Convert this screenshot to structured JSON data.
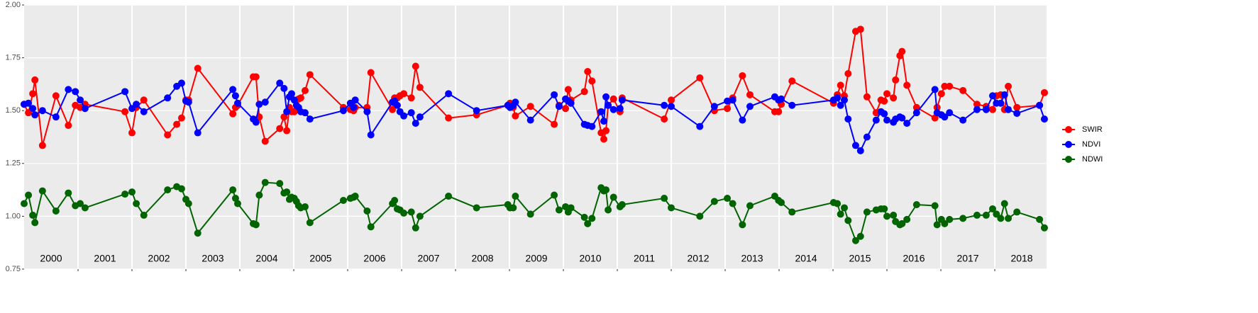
{
  "chart_data": {
    "type": "line",
    "x": [
      2000.0,
      2000.08,
      2000.16,
      2000.2,
      2000.34,
      2000.59,
      2000.82,
      2000.95,
      2001.04,
      2001.13,
      2001.87,
      2002.0,
      2002.08,
      2002.22,
      2002.66,
      2002.83,
      2002.92,
      2003.0,
      2003.05,
      2003.22,
      2003.87,
      2003.92,
      2003.96,
      2004.25,
      2004.3,
      2004.36,
      2004.47,
      2004.74,
      2004.82,
      2004.87,
      2004.92,
      2004.96,
      2005.01,
      2005.05,
      2005.09,
      2005.13,
      2005.21,
      2005.3,
      2005.92,
      2006.05,
      2006.11,
      2006.14,
      2006.36,
      2006.43,
      2006.83,
      2006.87,
      2006.92,
      2006.97,
      2007.04,
      2007.18,
      2007.26,
      2007.34,
      2007.87,
      2008.39,
      2008.97,
      2009.01,
      2009.07,
      2009.11,
      2009.39,
      2009.83,
      2009.92,
      2010.04,
      2010.09,
      2010.14,
      2010.39,
      2010.45,
      2010.53,
      2010.7,
      2010.75,
      2010.79,
      2010.83,
      2010.93,
      2011.05,
      2011.09,
      2011.87,
      2012.0,
      2012.53,
      2012.8,
      2013.04,
      2013.14,
      2013.32,
      2013.46,
      2013.92,
      2013.99,
      2014.04,
      2014.24,
      2015.01,
      2015.08,
      2015.14,
      2015.21,
      2015.28,
      2015.42,
      2015.51,
      2015.63,
      2015.8,
      2015.89,
      2015.95,
      2016.0,
      2016.12,
      2016.16,
      2016.24,
      2016.28,
      2016.37,
      2016.55,
      2016.89,
      2016.93,
      2017.01,
      2017.07,
      2017.16,
      2017.41,
      2017.67,
      2017.84,
      2017.96,
      2018.03,
      2018.11,
      2018.18,
      2018.25,
      2018.41,
      2018.83,
      2018.92
    ],
    "series": [
      {
        "name": "SWIR",
        "color": "#ff0000",
        "values": [
          1.53,
          1.49,
          1.58,
          1.645,
          1.335,
          1.57,
          1.43,
          1.525,
          1.515,
          1.53,
          1.495,
          1.395,
          1.515,
          1.55,
          1.385,
          1.435,
          1.465,
          1.55,
          1.55,
          1.7,
          1.485,
          1.515,
          1.525,
          1.66,
          1.66,
          1.47,
          1.355,
          1.415,
          1.47,
          1.405,
          1.515,
          1.495,
          1.495,
          1.505,
          1.555,
          1.56,
          1.595,
          1.67,
          1.515,
          1.505,
          1.5,
          1.515,
          1.515,
          1.68,
          1.505,
          1.56,
          1.56,
          1.57,
          1.58,
          1.56,
          1.71,
          1.61,
          1.465,
          1.48,
          1.525,
          1.535,
          1.515,
          1.475,
          1.52,
          1.435,
          1.525,
          1.51,
          1.6,
          1.55,
          1.59,
          1.685,
          1.64,
          1.395,
          1.365,
          1.405,
          1.525,
          1.555,
          1.495,
          1.56,
          1.46,
          1.55,
          1.655,
          1.5,
          1.51,
          1.56,
          1.665,
          1.575,
          1.495,
          1.495,
          1.53,
          1.64,
          1.535,
          1.575,
          1.62,
          1.57,
          1.675,
          1.875,
          1.885,
          1.565,
          1.49,
          1.55,
          1.545,
          1.58,
          1.56,
          1.645,
          1.76,
          1.78,
          1.62,
          1.515,
          1.465,
          1.515,
          1.58,
          1.615,
          1.615,
          1.595,
          1.53,
          1.52,
          1.505,
          1.57,
          1.575,
          1.505,
          1.615,
          1.515,
          1.525,
          1.585
        ]
      },
      {
        "name": "NDVI",
        "color": "#0000ff",
        "values": [
          1.53,
          1.535,
          1.51,
          1.48,
          1.5,
          1.47,
          1.6,
          1.59,
          1.55,
          1.51,
          1.59,
          1.51,
          1.53,
          1.495,
          1.56,
          1.615,
          1.63,
          1.545,
          1.54,
          1.395,
          1.6,
          1.57,
          1.535,
          1.46,
          1.445,
          1.53,
          1.54,
          1.63,
          1.605,
          1.495,
          1.565,
          1.58,
          1.55,
          1.525,
          1.515,
          1.495,
          1.49,
          1.46,
          1.5,
          1.535,
          1.515,
          1.55,
          1.495,
          1.385,
          1.54,
          1.545,
          1.525,
          1.495,
          1.475,
          1.49,
          1.44,
          1.47,
          1.58,
          1.5,
          1.525,
          1.515,
          1.525,
          1.54,
          1.455,
          1.575,
          1.52,
          1.555,
          1.545,
          1.535,
          1.435,
          1.43,
          1.425,
          1.495,
          1.45,
          1.565,
          1.525,
          1.505,
          1.51,
          1.55,
          1.525,
          1.52,
          1.425,
          1.52,
          1.545,
          1.55,
          1.455,
          1.52,
          1.565,
          1.55,
          1.555,
          1.525,
          1.55,
          1.56,
          1.525,
          1.55,
          1.46,
          1.335,
          1.31,
          1.375,
          1.455,
          1.495,
          1.485,
          1.455,
          1.445,
          1.46,
          1.47,
          1.465,
          1.44,
          1.49,
          1.6,
          1.49,
          1.48,
          1.47,
          1.49,
          1.455,
          1.505,
          1.505,
          1.57,
          1.535,
          1.535,
          1.575,
          1.505,
          1.487,
          1.525,
          1.46
        ]
      },
      {
        "name": "NDWI",
        "color": "#006400",
        "values": [
          1.06,
          1.1,
          1.005,
          0.97,
          1.12,
          1.025,
          1.11,
          1.05,
          1.06,
          1.04,
          1.105,
          1.115,
          1.06,
          1.005,
          1.125,
          1.14,
          1.13,
          1.08,
          1.06,
          0.92,
          1.125,
          1.085,
          1.06,
          0.965,
          0.96,
          1.1,
          1.16,
          1.155,
          1.11,
          1.115,
          1.08,
          1.09,
          1.085,
          1.07,
          1.05,
          1.04,
          1.045,
          0.97,
          1.075,
          1.085,
          1.09,
          1.095,
          1.025,
          0.95,
          1.06,
          1.075,
          1.035,
          1.03,
          1.015,
          1.02,
          0.945,
          1.0,
          1.095,
          1.04,
          1.055,
          1.04,
          1.04,
          1.095,
          1.01,
          1.1,
          1.03,
          1.045,
          1.02,
          1.04,
          0.995,
          0.965,
          0.99,
          1.135,
          1.12,
          1.125,
          1.03,
          1.09,
          1.045,
          1.055,
          1.085,
          1.04,
          1.0,
          1.07,
          1.085,
          1.06,
          0.96,
          1.05,
          1.095,
          1.075,
          1.065,
          1.02,
          1.065,
          1.06,
          1.01,
          1.04,
          0.98,
          0.885,
          0.905,
          1.02,
          1.03,
          1.035,
          1.035,
          1.0,
          1.005,
          0.975,
          0.96,
          0.965,
          0.985,
          1.055,
          1.05,
          0.96,
          0.985,
          0.965,
          0.985,
          0.99,
          1.005,
          1.005,
          1.035,
          1.01,
          0.99,
          1.06,
          0.99,
          1.02,
          0.985,
          0.945
        ]
      }
    ],
    "xlim": [
      2000,
      2018.96
    ],
    "xticks": [
      2001,
      2002,
      2003,
      2004,
      2005,
      2006,
      2007,
      2008,
      2009,
      2010,
      2011,
      2012,
      2013,
      2014,
      2015,
      2016,
      2017,
      2018
    ],
    "year_labels": [
      "2000",
      "2001",
      "2002",
      "2003",
      "2004",
      "2005",
      "2006",
      "2007",
      "2008",
      "2009",
      "2010",
      "2011",
      "2012",
      "2013",
      "2014",
      "2015",
      "2016",
      "2017",
      "2018"
    ],
    "ylim": [
      0.75,
      2.0
    ],
    "yticks": [
      {
        "value": 0.75,
        "label": "0.75"
      },
      {
        "value": 1.0,
        "label": "1.00"
      },
      {
        "value": 1.25,
        "label": "1.25"
      },
      {
        "value": 1.5,
        "label": "1.50"
      },
      {
        "value": 1.75,
        "label": "1.75"
      },
      {
        "value": 2.0,
        "label": "2.00"
      }
    ],
    "grid": true,
    "legend": "right"
  }
}
